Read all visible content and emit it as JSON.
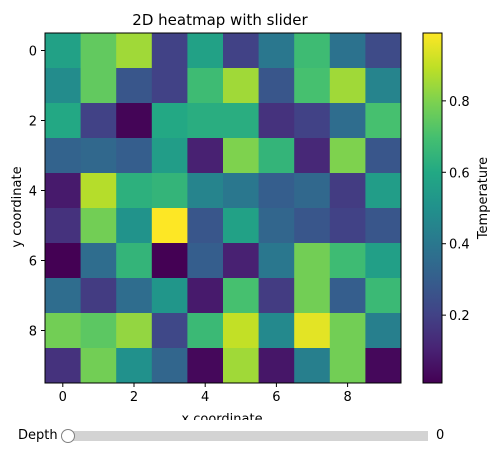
{
  "chart_data": {
    "type": "heatmap",
    "title": "2D heatmap with slider",
    "xlabel": "x coordinate",
    "ylabel": "y coordinate",
    "x_ticks": [
      "0",
      "2",
      "4",
      "6",
      "8"
    ],
    "y_ticks": [
      "0",
      "2",
      "4",
      "6",
      "8"
    ],
    "xlim": [
      -0.5,
      9.5
    ],
    "ylim": [
      9.5,
      -0.5
    ],
    "colorbar": {
      "label": "Temperature",
      "ticks": [
        "0.2",
        "0.4",
        "0.6",
        "0.8"
      ],
      "range": [
        0.01,
        0.99
      ],
      "colormap": "viridis"
    },
    "grid": false,
    "z": [
      [
        0.57,
        0.75,
        0.85,
        0.2,
        0.57,
        0.2,
        0.4,
        0.68,
        0.38,
        0.23
      ],
      [
        0.48,
        0.75,
        0.27,
        0.2,
        0.68,
        0.85,
        0.27,
        0.7,
        0.85,
        0.45
      ],
      [
        0.6,
        0.2,
        0.02,
        0.6,
        0.62,
        0.62,
        0.15,
        0.2,
        0.36,
        0.7
      ],
      [
        0.32,
        0.34,
        0.3,
        0.55,
        0.1,
        0.8,
        0.65,
        0.12,
        0.8,
        0.27
      ],
      [
        0.08,
        0.88,
        0.63,
        0.65,
        0.45,
        0.4,
        0.3,
        0.34,
        0.18,
        0.55
      ],
      [
        0.15,
        0.78,
        0.51,
        0.99,
        0.27,
        0.57,
        0.33,
        0.27,
        0.2,
        0.27
      ],
      [
        0.01,
        0.36,
        0.65,
        0.01,
        0.3,
        0.1,
        0.4,
        0.78,
        0.68,
        0.56
      ],
      [
        0.36,
        0.18,
        0.36,
        0.52,
        0.08,
        0.7,
        0.18,
        0.78,
        0.3,
        0.67
      ],
      [
        0.78,
        0.74,
        0.83,
        0.22,
        0.67,
        0.9,
        0.47,
        0.95,
        0.78,
        0.43
      ],
      [
        0.15,
        0.78,
        0.5,
        0.33,
        0.03,
        0.85,
        0.07,
        0.43,
        0.78,
        0.03
      ]
    ]
  },
  "slider": {
    "label": "Depth",
    "value": "0",
    "fraction": 0
  }
}
